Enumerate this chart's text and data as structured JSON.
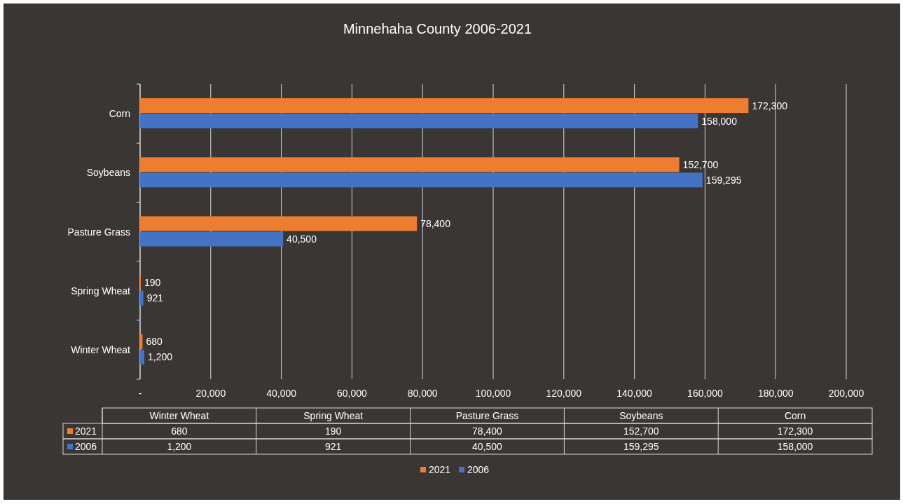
{
  "chart_data": {
    "type": "bar",
    "orientation": "horizontal",
    "title": "Minnehaha County 2006-2021",
    "categories": [
      "Corn",
      "Soybeans",
      "Pasture Grass",
      "Spring Wheat",
      "Winter Wheat"
    ],
    "series": [
      {
        "name": "2021",
        "color": "#ed7d31",
        "values": [
          172300,
          152700,
          78400,
          190,
          680
        ],
        "value_labels": [
          "172,300",
          "152,700",
          "78,400",
          "190",
          "680"
        ]
      },
      {
        "name": "2006",
        "color": "#4472c4",
        "values": [
          158000,
          159295,
          40500,
          921,
          1200
        ],
        "value_labels": [
          "158,000",
          "159,295",
          "40,500",
          "921",
          "1,200"
        ]
      }
    ],
    "xlim": [
      0,
      200000
    ],
    "xticks": [
      {
        "value": 0,
        "label": "-"
      },
      {
        "value": 20000,
        "label": "20,000"
      },
      {
        "value": 40000,
        "label": "40,000"
      },
      {
        "value": 60000,
        "label": "60,000"
      },
      {
        "value": 80000,
        "label": "80,000"
      },
      {
        "value": 100000,
        "label": "100,000"
      },
      {
        "value": 120000,
        "label": "120,000"
      },
      {
        "value": 140000,
        "label": "140,000"
      },
      {
        "value": 160000,
        "label": "160,000"
      },
      {
        "value": 180000,
        "label": "180,000"
      },
      {
        "value": 200000,
        "label": "200,000"
      }
    ],
    "grid": "x",
    "legend": "bottom"
  }
}
